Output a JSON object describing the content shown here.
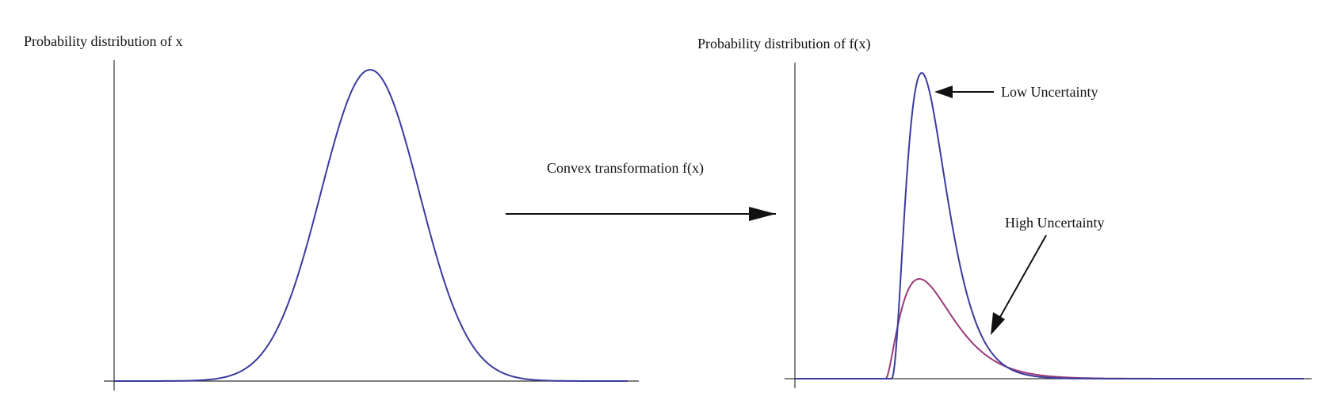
{
  "left_panel": {
    "title": "Probability distribution of x"
  },
  "right_panel": {
    "title": "Probability distribution of f(x)",
    "annotation_low": "Low Uncertainty",
    "annotation_high": "High Uncertainty"
  },
  "transform": {
    "label": "Convex transformation f(x)"
  },
  "colors": {
    "axis": "#333333",
    "blue_curve": "#3b3b9f",
    "purple_curve": "#9b3a77",
    "arrow": "#111111"
  }
}
